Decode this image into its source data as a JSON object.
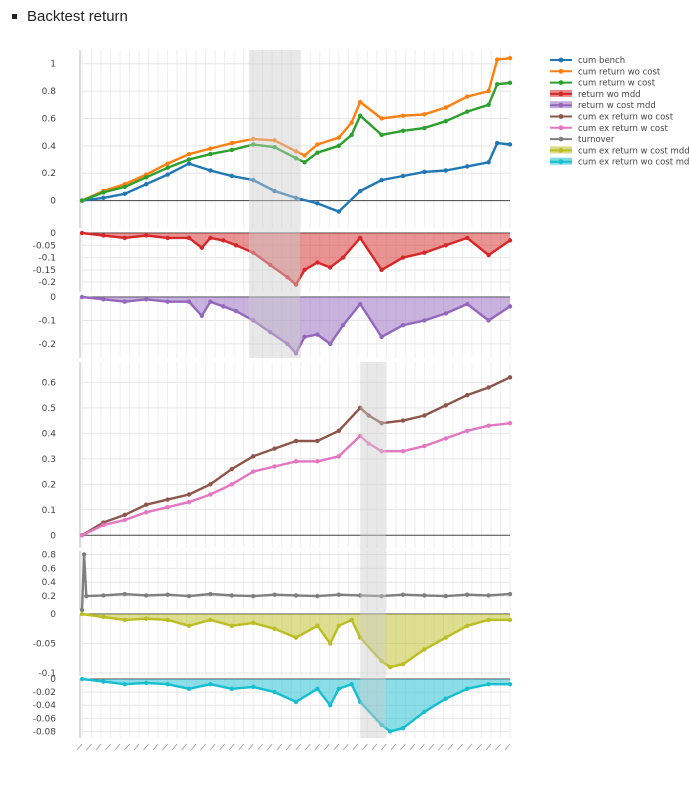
{
  "page": {
    "heading": "Backtest return"
  },
  "chart_data": [
    {
      "type": "line",
      "title": "",
      "legend_position": "top-right",
      "legend": [
        {
          "name": "cum bench",
          "color": "#1f77b4",
          "kind": "line"
        },
        {
          "name": "cum return wo cost",
          "color": "#ff7f0e",
          "kind": "line"
        },
        {
          "name": "cum return w cost",
          "color": "#2ca02c",
          "kind": "line"
        },
        {
          "name": "return wo mdd",
          "color": "#d62728",
          "kind": "area"
        },
        {
          "name": "return w cost mdd",
          "color": "#9467bd",
          "kind": "area"
        },
        {
          "name": "cum ex return wo cost",
          "color": "#8c564b",
          "kind": "line"
        },
        {
          "name": "cum ex return w cost",
          "color": "#e377c2",
          "kind": "line"
        },
        {
          "name": "turnover",
          "color": "#7f7f7f",
          "kind": "line"
        },
        {
          "name": "cum ex return w cost mdd",
          "color": "#bcbd22",
          "kind": "area"
        },
        {
          "name": "cum ex return wo cost mdd",
          "color": "#17becf",
          "kind": "area"
        }
      ],
      "x_range": [
        0,
        100
      ],
      "x_tick_count": 46,
      "shaded_regions": [
        {
          "panels": "top",
          "x": [
            39,
            51
          ]
        },
        {
          "panels": "bottom",
          "x": [
            65,
            71
          ]
        }
      ],
      "panels": [
        {
          "id": "cum-return",
          "ylim": [
            -0.2,
            1.1
          ],
          "yticks": [
            0,
            0.2,
            0.4,
            0.6,
            0.8,
            1
          ],
          "ytick_labels": [
            "0",
            "0.2",
            "0.4",
            "0.6",
            "0.8",
            "1"
          ],
          "series": [
            {
              "color": "#1f77b4",
              "x": [
                0,
                5,
                10,
                15,
                20,
                25,
                30,
                35,
                40,
                45,
                50,
                55,
                60,
                65,
                70,
                75,
                80,
                85,
                90,
                95,
                97,
                100
              ],
              "values": [
                0,
                0.02,
                0.05,
                0.12,
                0.19,
                0.27,
                0.22,
                0.18,
                0.15,
                0.07,
                0.02,
                -0.02,
                -0.08,
                0.07,
                0.15,
                0.18,
                0.21,
                0.22,
                0.25,
                0.28,
                0.42,
                0.41
              ]
            },
            {
              "color": "#ff7f0e",
              "x": [
                0,
                5,
                10,
                15,
                20,
                25,
                30,
                35,
                40,
                45,
                50,
                52,
                55,
                60,
                63,
                65,
                70,
                75,
                80,
                85,
                90,
                95,
                97,
                100
              ],
              "values": [
                0,
                0.07,
                0.12,
                0.19,
                0.27,
                0.34,
                0.38,
                0.42,
                0.45,
                0.44,
                0.36,
                0.33,
                0.41,
                0.46,
                0.57,
                0.72,
                0.6,
                0.62,
                0.63,
                0.68,
                0.76,
                0.8,
                1.03,
                1.04
              ]
            },
            {
              "color": "#2ca02c",
              "x": [
                0,
                5,
                10,
                15,
                20,
                25,
                30,
                35,
                40,
                45,
                50,
                52,
                55,
                60,
                63,
                65,
                70,
                75,
                80,
                85,
                90,
                95,
                97,
                100
              ],
              "values": [
                0,
                0.06,
                0.1,
                0.17,
                0.24,
                0.3,
                0.34,
                0.37,
                0.41,
                0.39,
                0.31,
                0.28,
                0.35,
                0.4,
                0.48,
                0.62,
                0.48,
                0.51,
                0.53,
                0.58,
                0.65,
                0.7,
                0.85,
                0.86
              ]
            }
          ]
        },
        {
          "id": "return-wo-mdd",
          "ylim": [
            -0.24,
            0.0
          ],
          "yticks": [
            0,
            -0.05,
            -0.1,
            -0.15,
            -0.2
          ],
          "ytick_labels": [
            "0",
            "-0.05",
            "-0.1",
            "-0.15",
            "-0.2"
          ],
          "series": [
            {
              "color": "#d62728",
              "fill": true,
              "x": [
                0,
                5,
                10,
                15,
                20,
                25,
                28,
                30,
                33,
                36,
                40,
                44,
                48,
                50,
                52,
                55,
                58,
                61,
                65,
                70,
                75,
                80,
                85,
                90,
                95,
                100
              ],
              "values": [
                0,
                -0.01,
                -0.02,
                -0.01,
                -0.02,
                -0.02,
                -0.06,
                -0.02,
                -0.03,
                -0.05,
                -0.08,
                -0.13,
                -0.18,
                -0.21,
                -0.15,
                -0.12,
                -0.14,
                -0.1,
                -0.02,
                -0.15,
                -0.1,
                -0.08,
                -0.05,
                -0.02,
                -0.09,
                -0.03
              ]
            }
          ]
        },
        {
          "id": "return-w-cost-mdd",
          "ylim": [
            -0.26,
            0.0
          ],
          "yticks": [
            0,
            -0.1,
            -0.2
          ],
          "ytick_labels": [
            "0",
            "-0.1",
            "-0.2"
          ],
          "series": [
            {
              "color": "#9467bd",
              "fill": true,
              "x": [
                0,
                5,
                10,
                15,
                20,
                25,
                28,
                30,
                33,
                36,
                40,
                44,
                48,
                50,
                52,
                55,
                58,
                61,
                65,
                70,
                75,
                80,
                85,
                90,
                95,
                100
              ],
              "values": [
                0,
                -0.01,
                -0.02,
                -0.01,
                -0.02,
                -0.02,
                -0.08,
                -0.02,
                -0.04,
                -0.06,
                -0.1,
                -0.15,
                -0.2,
                -0.24,
                -0.17,
                -0.16,
                -0.2,
                -0.12,
                -0.03,
                -0.17,
                -0.12,
                -0.1,
                -0.07,
                -0.03,
                -0.1,
                -0.04
              ]
            }
          ]
        },
        {
          "id": "cum-ex-return",
          "ylim": [
            -0.05,
            0.68
          ],
          "yticks": [
            0,
            0.1,
            0.2,
            0.3,
            0.4,
            0.5,
            0.6
          ],
          "ytick_labels": [
            "0",
            "0.1",
            "0.2",
            "0.3",
            "0.4",
            "0.5",
            "0.6"
          ],
          "series": [
            {
              "color": "#8c564b",
              "x": [
                0,
                5,
                10,
                15,
                20,
                25,
                30,
                35,
                40,
                45,
                50,
                55,
                60,
                65,
                67,
                70,
                75,
                80,
                85,
                90,
                95,
                100
              ],
              "values": [
                0,
                0.05,
                0.08,
                0.12,
                0.14,
                0.16,
                0.2,
                0.26,
                0.31,
                0.34,
                0.37,
                0.37,
                0.41,
                0.5,
                0.47,
                0.44,
                0.45,
                0.47,
                0.51,
                0.55,
                0.58,
                0.62
              ]
            },
            {
              "color": "#e377c2",
              "x": [
                0,
                5,
                10,
                15,
                20,
                25,
                30,
                35,
                40,
                45,
                50,
                55,
                60,
                65,
                67,
                70,
                75,
                80,
                85,
                90,
                95,
                100
              ],
              "values": [
                0,
                0.04,
                0.06,
                0.09,
                0.11,
                0.13,
                0.16,
                0.2,
                0.25,
                0.27,
                0.29,
                0.29,
                0.31,
                0.39,
                0.36,
                0.33,
                0.33,
                0.35,
                0.38,
                0.41,
                0.43,
                0.44
              ]
            }
          ]
        },
        {
          "id": "turnover",
          "ylim": [
            0,
            0.85
          ],
          "yticks": [
            0.2,
            0.4,
            0.6,
            0.8
          ],
          "ytick_labels": [
            "0.2",
            "0.4",
            "0.6",
            "0.8"
          ],
          "series": [
            {
              "color": "#7f7f7f",
              "x": [
                0,
                0.5,
                1,
                5,
                10,
                15,
                20,
                25,
                30,
                35,
                40,
                45,
                50,
                55,
                60,
                65,
                70,
                75,
                80,
                85,
                90,
                95,
                100
              ],
              "values": [
                0,
                0.8,
                0.2,
                0.21,
                0.23,
                0.21,
                0.22,
                0.2,
                0.23,
                0.21,
                0.2,
                0.22,
                0.21,
                0.2,
                0.22,
                0.21,
                0.2,
                0.22,
                0.21,
                0.2,
                0.22,
                0.21,
                0.23
              ]
            }
          ]
        },
        {
          "id": "cum-ex-return-w-cost-mdd",
          "ylim": [
            -0.105,
            0.0
          ],
          "yticks": [
            0,
            -0.05,
            -0.1
          ],
          "ytick_labels": [
            "0",
            "-0.05",
            "-0.1"
          ],
          "series": [
            {
              "color": "#bcbd22",
              "fill": true,
              "x": [
                0,
                5,
                10,
                15,
                20,
                25,
                30,
                35,
                40,
                45,
                50,
                55,
                58,
                60,
                63,
                65,
                70,
                72,
                75,
                80,
                85,
                90,
                95,
                100
              ],
              "values": [
                0,
                -0.005,
                -0.01,
                -0.008,
                -0.01,
                -0.02,
                -0.01,
                -0.02,
                -0.015,
                -0.025,
                -0.04,
                -0.02,
                -0.05,
                -0.02,
                -0.01,
                -0.04,
                -0.08,
                -0.09,
                -0.085,
                -0.06,
                -0.04,
                -0.02,
                -0.01,
                -0.01
              ]
            }
          ]
        },
        {
          "id": "cum-ex-return-wo-cost-mdd",
          "ylim": [
            -0.09,
            0.0
          ],
          "yticks": [
            0,
            -0.02,
            -0.04,
            -0.06,
            -0.08
          ],
          "ytick_labels": [
            "0",
            "-0.02",
            "-0.04",
            "-0.06",
            "-0.08"
          ],
          "series": [
            {
              "color": "#17becf",
              "fill": true,
              "x": [
                0,
                5,
                10,
                15,
                20,
                25,
                30,
                35,
                40,
                45,
                50,
                55,
                58,
                60,
                63,
                65,
                70,
                72,
                75,
                80,
                85,
                90,
                95,
                100
              ],
              "values": [
                0,
                -0.004,
                -0.008,
                -0.006,
                -0.008,
                -0.015,
                -0.008,
                -0.015,
                -0.012,
                -0.02,
                -0.035,
                -0.015,
                -0.04,
                -0.015,
                -0.008,
                -0.035,
                -0.07,
                -0.08,
                -0.075,
                -0.05,
                -0.03,
                -0.015,
                -0.008,
                -0.008
              ]
            }
          ]
        }
      ]
    }
  ]
}
